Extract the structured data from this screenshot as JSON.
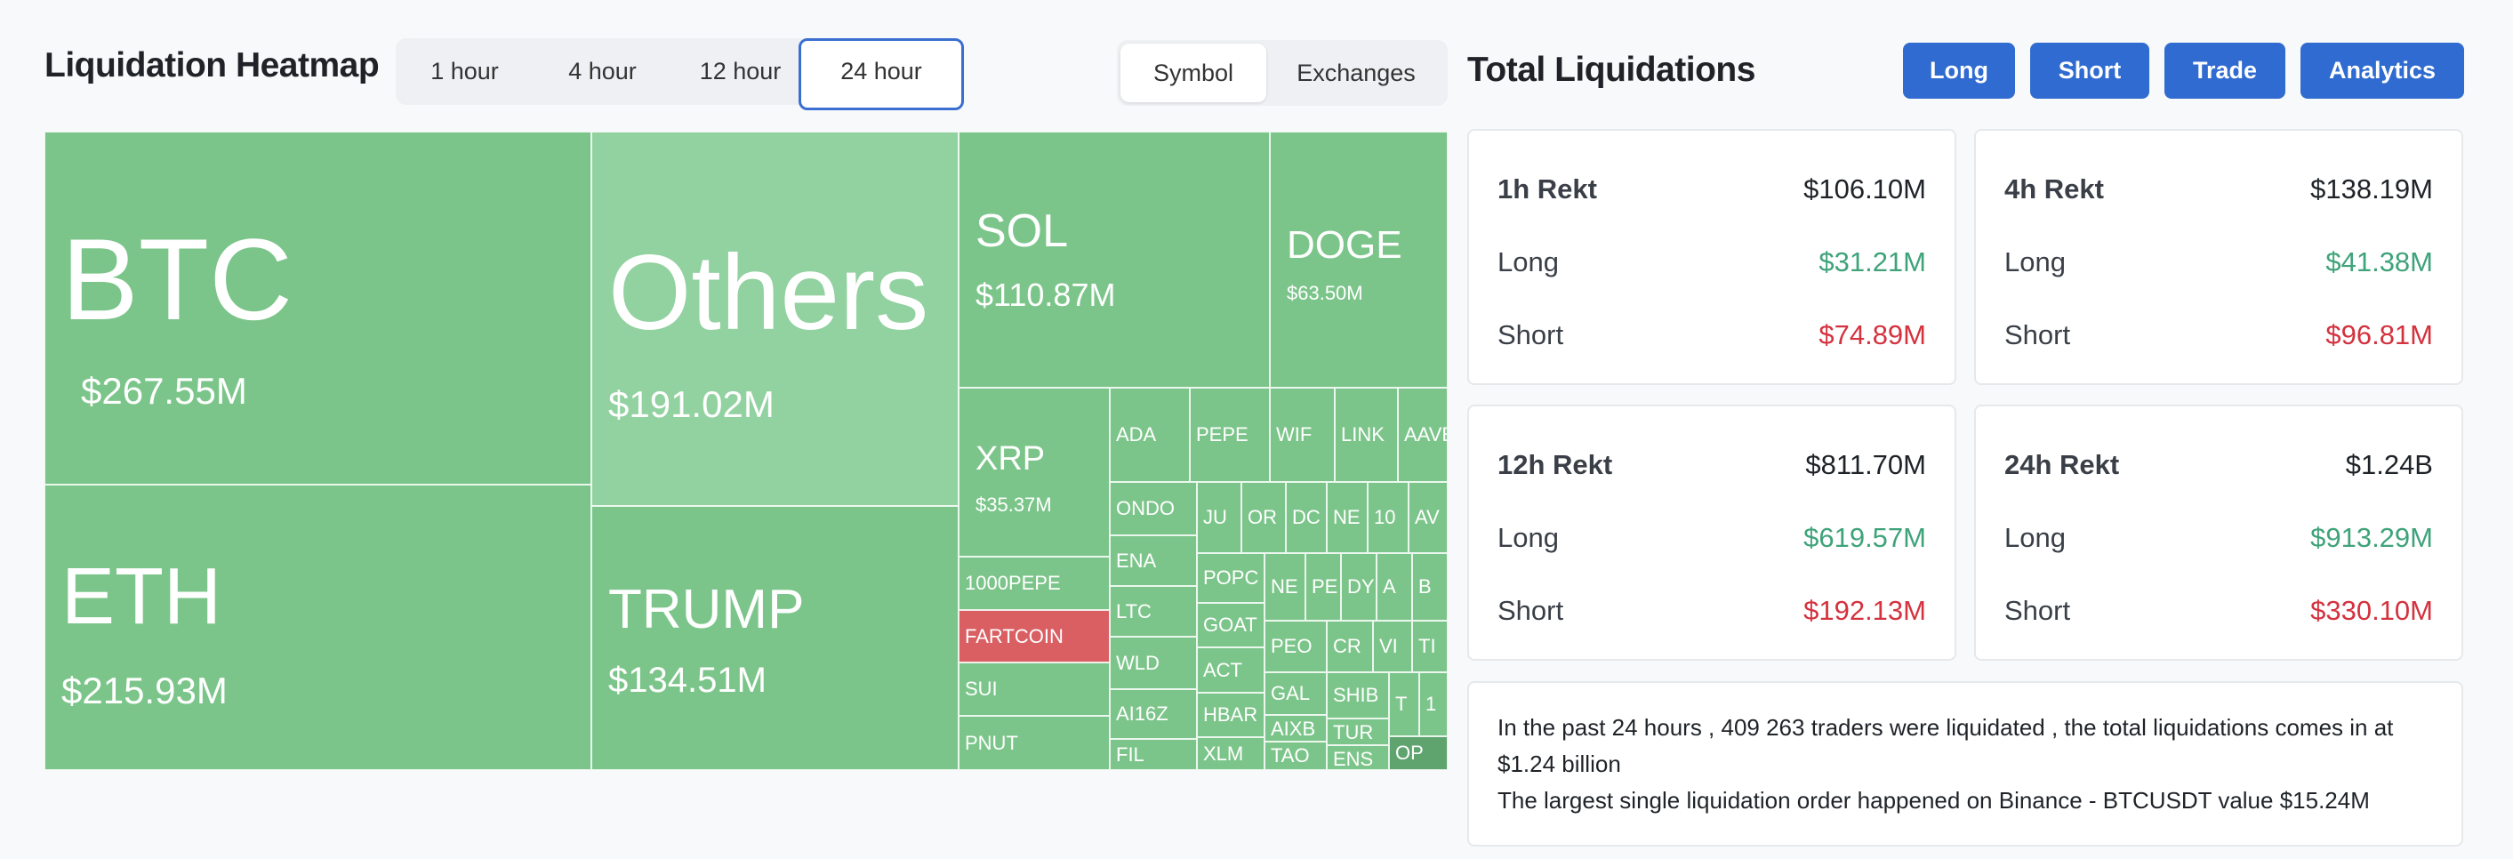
{
  "heatmap": {
    "title": "Liquidation Heatmap",
    "timeframes": [
      "1 hour",
      "4 hour",
      "12 hour",
      "24 hour"
    ],
    "active_timeframe": "24 hour",
    "views": [
      "Symbol",
      "Exchanges"
    ],
    "active_view": "Symbol",
    "colors": {
      "long": "#7cc58a",
      "light": "#92d1a0",
      "short": "#d95f63"
    },
    "cells": [
      {
        "sym": "BTC",
        "val": "$267.55M"
      },
      {
        "sym": "Others",
        "val": "$191.02M"
      },
      {
        "sym": "ETH",
        "val": "$215.93M"
      },
      {
        "sym": "TRUMP",
        "val": "$134.51M"
      },
      {
        "sym": "SOL",
        "val": "$110.87M"
      },
      {
        "sym": "DOGE",
        "val": "$63.50M"
      },
      {
        "sym": "XRP",
        "val": "$35.37M"
      },
      {
        "sym": "1000PEPE"
      },
      {
        "sym": "FARTCOIN"
      },
      {
        "sym": "SUI"
      },
      {
        "sym": "PNUT"
      },
      {
        "sym": "ADA"
      },
      {
        "sym": "PEPE"
      },
      {
        "sym": "WIF"
      },
      {
        "sym": "LINK"
      },
      {
        "sym": "AAVE"
      },
      {
        "sym": "ONDO"
      },
      {
        "sym": "ENA"
      },
      {
        "sym": "LTC"
      },
      {
        "sym": "WLD"
      },
      {
        "sym": "AI16Z"
      },
      {
        "sym": "FIL"
      },
      {
        "sym": "JU"
      },
      {
        "sym": "OR"
      },
      {
        "sym": "DC"
      },
      {
        "sym": "NE"
      },
      {
        "sym": "10"
      },
      {
        "sym": "AV"
      },
      {
        "sym": "POPC"
      },
      {
        "sym": "GOAT"
      },
      {
        "sym": "ACT"
      },
      {
        "sym": "HBAR"
      },
      {
        "sym": "XLM"
      },
      {
        "sym": "NE"
      },
      {
        "sym": "PE"
      },
      {
        "sym": "DY"
      },
      {
        "sym": "A"
      },
      {
        "sym": "B"
      },
      {
        "sym": "PEO"
      },
      {
        "sym": "CR"
      },
      {
        "sym": "VI"
      },
      {
        "sym": "TI"
      },
      {
        "sym": "GAL"
      },
      {
        "sym": "SHIB"
      },
      {
        "sym": "T"
      },
      {
        "sym": "1"
      },
      {
        "sym": "AIXB"
      },
      {
        "sym": "TUR"
      },
      {
        "sym": "TAO"
      },
      {
        "sym": "ENS"
      },
      {
        "sym": "OP"
      }
    ]
  },
  "totals": {
    "title": "Total Liquidations",
    "buttons": [
      "Long",
      "Short",
      "Trade",
      "Analytics"
    ],
    "cards": [
      {
        "label": "1h Rekt",
        "total": "$106.10M",
        "long_label": "Long",
        "long": "$31.21M",
        "short_label": "Short",
        "short": "$74.89M"
      },
      {
        "label": "4h Rekt",
        "total": "$138.19M",
        "long_label": "Long",
        "long": "$41.38M",
        "short_label": "Short",
        "short": "$96.81M"
      },
      {
        "label": "12h Rekt",
        "total": "$811.70M",
        "long_label": "Long",
        "long": "$619.57M",
        "short_label": "Short",
        "short": "$192.13M"
      },
      {
        "label": "24h Rekt",
        "total": "$1.24B",
        "long_label": "Long",
        "long": "$913.29M",
        "short_label": "Short",
        "short": "$330.10M"
      }
    ],
    "summary_line1": "In the past 24 hours , 409 263 traders were liquidated , the total liquidations comes in at $1.24 billion",
    "summary_line2": "The largest single liquidation order happened on Binance - BTCUSDT value $15.24M"
  }
}
